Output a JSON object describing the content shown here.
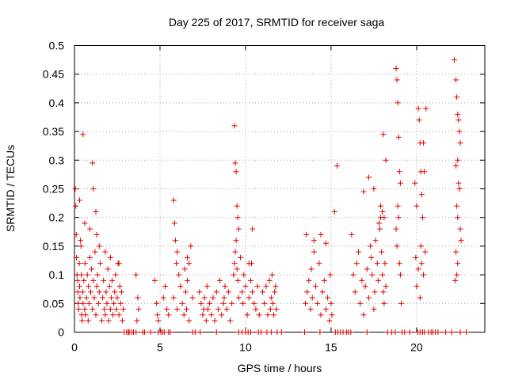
{
  "chart_data": {
    "type": "scatter",
    "title": "Day 225 of 2017, SRMTID for receiver saga",
    "xlabel": "GPS time / hours",
    "ylabel": "SRMTID / TECUs",
    "xlim": [
      0,
      23.986
    ],
    "ylim": [
      0,
      0.5
    ],
    "xticks": [
      0,
      5,
      10,
      15,
      20
    ],
    "xtick_labels": [
      "0",
      "5",
      "10",
      "15",
      "20"
    ],
    "yticks": [
      0,
      0.05,
      0.1,
      0.15,
      0.2,
      0.25,
      0.3,
      0.35,
      0.4,
      0.45,
      0.5
    ],
    "ytick_labels": [
      "0",
      "0.05",
      "0.1",
      "0.15",
      "0.2",
      "0.25",
      "0.3",
      "0.35",
      "0.4",
      "0.45",
      "0.5"
    ],
    "grid": true,
    "marker": "+",
    "color": "#e00000",
    "series": [
      {
        "name": "SRMTID",
        "points": [
          [
            0.05,
            0.25
          ],
          [
            0.08,
            0.22
          ],
          [
            0.1,
            0.17
          ],
          [
            0.12,
            0.13
          ],
          [
            0.15,
            0.1
          ],
          [
            0.18,
            0.09
          ],
          [
            0.2,
            0.07
          ],
          [
            0.22,
            0.05
          ],
          [
            0.25,
            0.04
          ],
          [
            0.28,
            0.12
          ],
          [
            0.3,
            0.08
          ],
          [
            0.32,
            0.06
          ],
          [
            0.35,
            0.16
          ],
          [
            0.38,
            0.15
          ],
          [
            0.4,
            0.1
          ],
          [
            0.42,
            0.03
          ],
          [
            0.45,
            0.02
          ],
          [
            0.48,
            0.07
          ],
          [
            0.5,
            0.05
          ],
          [
            0.55,
            0.09
          ],
          [
            0.6,
            0.04
          ],
          [
            0.62,
            0.12
          ],
          [
            0.65,
            0.03
          ],
          [
            0.7,
            0.06
          ],
          [
            0.75,
            0.1
          ],
          [
            0.8,
            0.02
          ],
          [
            0.82,
            0.08
          ],
          [
            0.85,
            0.05
          ],
          [
            0.9,
            0.13
          ],
          [
            0.95,
            0.07
          ],
          [
            1.0,
            0.11
          ],
          [
            1.05,
            0.04
          ],
          [
            1.1,
            0.09
          ],
          [
            1.15,
            0.06
          ],
          [
            1.2,
            0.14
          ],
          [
            1.25,
            0.03
          ],
          [
            1.3,
            0.08
          ],
          [
            1.35,
            0.1
          ],
          [
            1.4,
            0.05
          ],
          [
            1.45,
            0.07
          ],
          [
            1.5,
            0.12
          ],
          [
            1.6,
            0.02
          ],
          [
            1.65,
            0.06
          ],
          [
            1.7,
            0.09
          ],
          [
            1.75,
            0.04
          ],
          [
            1.8,
            0.03
          ],
          [
            1.85,
            0.07
          ],
          [
            1.9,
            0.05
          ],
          [
            1.95,
            0.11
          ],
          [
            2.0,
            0.02
          ],
          [
            2.05,
            0.08
          ],
          [
            2.1,
            0.04
          ],
          [
            2.15,
            0.06
          ],
          [
            2.2,
            0.09
          ],
          [
            2.25,
            0.03
          ],
          [
            2.3,
            0.05
          ],
          [
            2.35,
            0.07
          ],
          [
            2.4,
            0.1
          ],
          [
            2.45,
            0.04
          ],
          [
            2.5,
            0.06
          ],
          [
            2.55,
            0.12
          ],
          [
            2.6,
            0.03
          ],
          [
            2.65,
            0.08
          ],
          [
            2.7,
            0.05
          ],
          [
            2.75,
            0.07
          ],
          [
            2.8,
            0.02
          ],
          [
            2.85,
            0.04
          ],
          [
            0.5,
            0.345
          ],
          [
            1.05,
            0.295
          ],
          [
            1.1,
            0.25
          ],
          [
            1.25,
            0.21
          ],
          [
            0.3,
            0.23
          ],
          [
            0.6,
            0.19
          ],
          [
            0.9,
            0.18
          ],
          [
            1.3,
            0.17
          ],
          [
            1.45,
            0.15
          ],
          [
            1.8,
            0.14
          ],
          [
            2.1,
            0.13
          ],
          [
            2.6,
            0.12
          ],
          [
            3.7,
            0.06
          ],
          [
            3.6,
            0.1
          ],
          [
            3.75,
            0.04
          ],
          [
            4.0,
            0.0
          ],
          [
            3.65,
            0.02
          ],
          [
            4.7,
            0.09
          ],
          [
            4.8,
            0.05
          ],
          [
            4.85,
            0.03
          ],
          [
            4.9,
            0.02
          ],
          [
            5.2,
            0.06
          ],
          [
            5.3,
            0.08
          ],
          [
            5.4,
            0.04
          ],
          [
            5.5,
            0.03
          ],
          [
            5.8,
            0.23
          ],
          [
            5.85,
            0.19
          ],
          [
            5.9,
            0.16
          ],
          [
            6.0,
            0.14
          ],
          [
            5.95,
            0.12
          ],
          [
            6.1,
            0.1
          ],
          [
            6.2,
            0.08
          ],
          [
            5.8,
            0.06
          ],
          [
            6.0,
            0.04
          ],
          [
            6.3,
            0.05
          ],
          [
            6.5,
            0.07
          ],
          [
            6.6,
            0.09
          ],
          [
            6.7,
            0.12
          ],
          [
            6.8,
            0.15
          ],
          [
            6.55,
            0.04
          ],
          [
            6.4,
            0.03
          ],
          [
            6.7,
            0.02
          ],
          [
            6.9,
            0.06
          ],
          [
            6.45,
            0.11
          ],
          [
            6.6,
            0.13
          ],
          [
            7.3,
            0.07
          ],
          [
            7.4,
            0.05
          ],
          [
            7.5,
            0.03
          ],
          [
            7.55,
            0.04
          ],
          [
            7.6,
            0.06
          ],
          [
            7.7,
            0.02
          ],
          [
            7.75,
            0.08
          ],
          [
            7.8,
            0.04
          ],
          [
            7.9,
            0.05
          ],
          [
            8.0,
            0.03
          ],
          [
            8.1,
            0.06
          ],
          [
            8.2,
            0.02
          ],
          [
            8.3,
            0.07
          ],
          [
            8.4,
            0.04
          ],
          [
            8.5,
            0.09
          ],
          [
            8.6,
            0.03
          ],
          [
            8.7,
            0.05
          ],
          [
            8.75,
            0.06
          ],
          [
            8.8,
            0.08
          ],
          [
            8.9,
            0.04
          ],
          [
            9.0,
            0.07
          ],
          [
            9.1,
            0.02
          ],
          [
            9.2,
            0.05
          ],
          [
            9.3,
            0.1
          ],
          [
            9.35,
            0.12
          ],
          [
            9.4,
            0.14
          ],
          [
            9.45,
            0.16
          ],
          [
            9.5,
            0.11
          ],
          [
            9.55,
            0.09
          ],
          [
            9.6,
            0.06
          ],
          [
            9.7,
            0.13
          ],
          [
            9.8,
            0.07
          ],
          [
            9.85,
            0.05
          ],
          [
            9.9,
            0.1
          ],
          [
            10.0,
            0.08
          ],
          [
            10.1,
            0.03
          ],
          [
            10.2,
            0.06
          ],
          [
            10.3,
            0.09
          ],
          [
            10.35,
            0.12
          ],
          [
            10.4,
            0.07
          ],
          [
            10.5,
            0.05
          ],
          [
            10.6,
            0.04
          ],
          [
            10.7,
            0.08
          ],
          [
            10.8,
            0.03
          ],
          [
            9.35,
            0.36
          ],
          [
            9.4,
            0.295
          ],
          [
            9.45,
            0.28
          ],
          [
            9.5,
            0.22
          ],
          [
            9.55,
            0.2
          ],
          [
            9.6,
            0.18
          ],
          [
            10.4,
            0.18
          ],
          [
            10.2,
            0.12
          ],
          [
            11.0,
            0.07
          ],
          [
            11.1,
            0.05
          ],
          [
            11.2,
            0.08
          ],
          [
            11.3,
            0.03
          ],
          [
            11.4,
            0.09
          ],
          [
            11.45,
            0.04
          ],
          [
            11.5,
            0.06
          ],
          [
            11.55,
            0.1
          ],
          [
            11.6,
            0.05
          ],
          [
            11.65,
            0.03
          ],
          [
            11.7,
            0.07
          ],
          [
            11.75,
            0.08
          ],
          [
            11.8,
            0.04
          ],
          [
            13.5,
            0.05
          ],
          [
            13.6,
            0.07
          ],
          [
            13.7,
            0.09
          ],
          [
            13.8,
            0.04
          ],
          [
            13.85,
            0.11
          ],
          [
            13.9,
            0.06
          ],
          [
            14.0,
            0.14
          ],
          [
            14.1,
            0.08
          ],
          [
            14.2,
            0.05
          ],
          [
            14.3,
            0.12
          ],
          [
            14.4,
            0.03
          ],
          [
            14.5,
            0.07
          ],
          [
            14.6,
            0.09
          ],
          [
            14.7,
            0.04
          ],
          [
            14.8,
            0.06
          ],
          [
            14.9,
            0.02
          ],
          [
            15.0,
            0.05
          ],
          [
            15.05,
            0.03
          ],
          [
            13.55,
            0.17
          ],
          [
            14.0,
            0.16
          ],
          [
            14.4,
            0.17
          ],
          [
            14.7,
            0.155
          ],
          [
            14.95,
            0.1
          ],
          [
            15.35,
            0.29
          ],
          [
            15.2,
            0.21
          ],
          [
            16.2,
            0.17
          ],
          [
            16.3,
            0.1
          ],
          [
            16.4,
            0.07
          ],
          [
            16.5,
            0.12
          ],
          [
            16.6,
            0.14
          ],
          [
            16.7,
            0.05
          ],
          [
            16.8,
            0.09
          ],
          [
            16.9,
            0.03
          ],
          [
            17.0,
            0.08
          ],
          [
            17.1,
            0.11
          ],
          [
            17.2,
            0.06
          ],
          [
            17.3,
            0.15
          ],
          [
            17.35,
            0.13
          ],
          [
            17.4,
            0.1
          ],
          [
            17.5,
            0.04
          ],
          [
            17.55,
            0.07
          ],
          [
            17.6,
            0.16
          ],
          [
            17.7,
            0.12
          ],
          [
            17.75,
            0.09
          ],
          [
            17.8,
            0.19
          ],
          [
            17.85,
            0.18
          ],
          [
            17.9,
            0.2
          ],
          [
            17.95,
            0.14
          ],
          [
            18.0,
            0.1
          ],
          [
            18.05,
            0.07
          ],
          [
            18.1,
            0.05
          ],
          [
            18.15,
            0.12
          ],
          [
            18.2,
            0.08
          ],
          [
            16.9,
            0.245
          ],
          [
            17.2,
            0.27
          ],
          [
            17.5,
            0.25
          ],
          [
            17.9,
            0.22
          ],
          [
            18.0,
            0.21
          ],
          [
            18.1,
            0.2
          ],
          [
            18.05,
            0.345
          ],
          [
            18.2,
            0.3
          ],
          [
            18.8,
            0.46
          ],
          [
            18.85,
            0.44
          ],
          [
            18.9,
            0.4
          ],
          [
            18.95,
            0.34
          ],
          [
            19.0,
            0.28
          ],
          [
            19.05,
            0.26
          ],
          [
            18.9,
            0.22
          ],
          [
            18.8,
            0.18
          ],
          [
            18.85,
            0.15
          ],
          [
            19.0,
            0.12
          ],
          [
            19.05,
            0.1
          ],
          [
            19.1,
            0.05
          ],
          [
            18.95,
            0.2
          ],
          [
            19.9,
            0.26
          ],
          [
            20.0,
            0.22
          ],
          [
            20.1,
            0.39
          ],
          [
            20.15,
            0.37
          ],
          [
            20.2,
            0.33
          ],
          [
            20.25,
            0.28
          ],
          [
            20.3,
            0.24
          ],
          [
            20.4,
            0.33
          ],
          [
            20.45,
            0.28
          ],
          [
            20.35,
            0.2
          ],
          [
            20.25,
            0.15
          ],
          [
            20.3,
            0.12
          ],
          [
            20.4,
            0.1
          ],
          [
            20.2,
            0.06
          ],
          [
            20.0,
            0.08
          ],
          [
            19.95,
            0.13
          ],
          [
            20.1,
            0.11
          ],
          [
            20.5,
            0.14
          ],
          [
            20.55,
            0.39
          ],
          [
            22.2,
            0.475
          ],
          [
            22.3,
            0.44
          ],
          [
            22.35,
            0.41
          ],
          [
            22.4,
            0.38
          ],
          [
            22.45,
            0.37
          ],
          [
            22.5,
            0.35
          ],
          [
            22.55,
            0.33
          ],
          [
            22.4,
            0.3
          ],
          [
            22.3,
            0.29
          ],
          [
            22.45,
            0.26
          ],
          [
            22.5,
            0.25
          ],
          [
            22.35,
            0.22
          ],
          [
            22.4,
            0.2
          ],
          [
            22.55,
            0.18
          ],
          [
            22.6,
            0.16
          ],
          [
            22.3,
            0.14
          ],
          [
            22.4,
            0.12
          ],
          [
            22.35,
            0.1
          ],
          [
            22.25,
            0.09
          ]
        ]
      }
    ],
    "zero_points_x": [
      2.9,
      3.05,
      3.15,
      3.2,
      3.35,
      3.45,
      3.6,
      4.1,
      4.45,
      4.9,
      5.05,
      5.15,
      5.25,
      5.5,
      5.6,
      6.9,
      7.05,
      7.35,
      8.3,
      9.6,
      9.8,
      10.0,
      10.15,
      10.3,
      10.75,
      10.9,
      11.25,
      11.5,
      11.85,
      12.1,
      13.45,
      14.35,
      15.25,
      15.4,
      15.55,
      15.7,
      15.9,
      16.0,
      16.15,
      17.1,
      18.3,
      18.55,
      18.75,
      19.15,
      19.3,
      19.6,
      20.05,
      20.2,
      20.35,
      20.45,
      20.7,
      20.85,
      20.95,
      21.1,
      21.25,
      21.7,
      22.05,
      22.55,
      22.9
    ]
  }
}
